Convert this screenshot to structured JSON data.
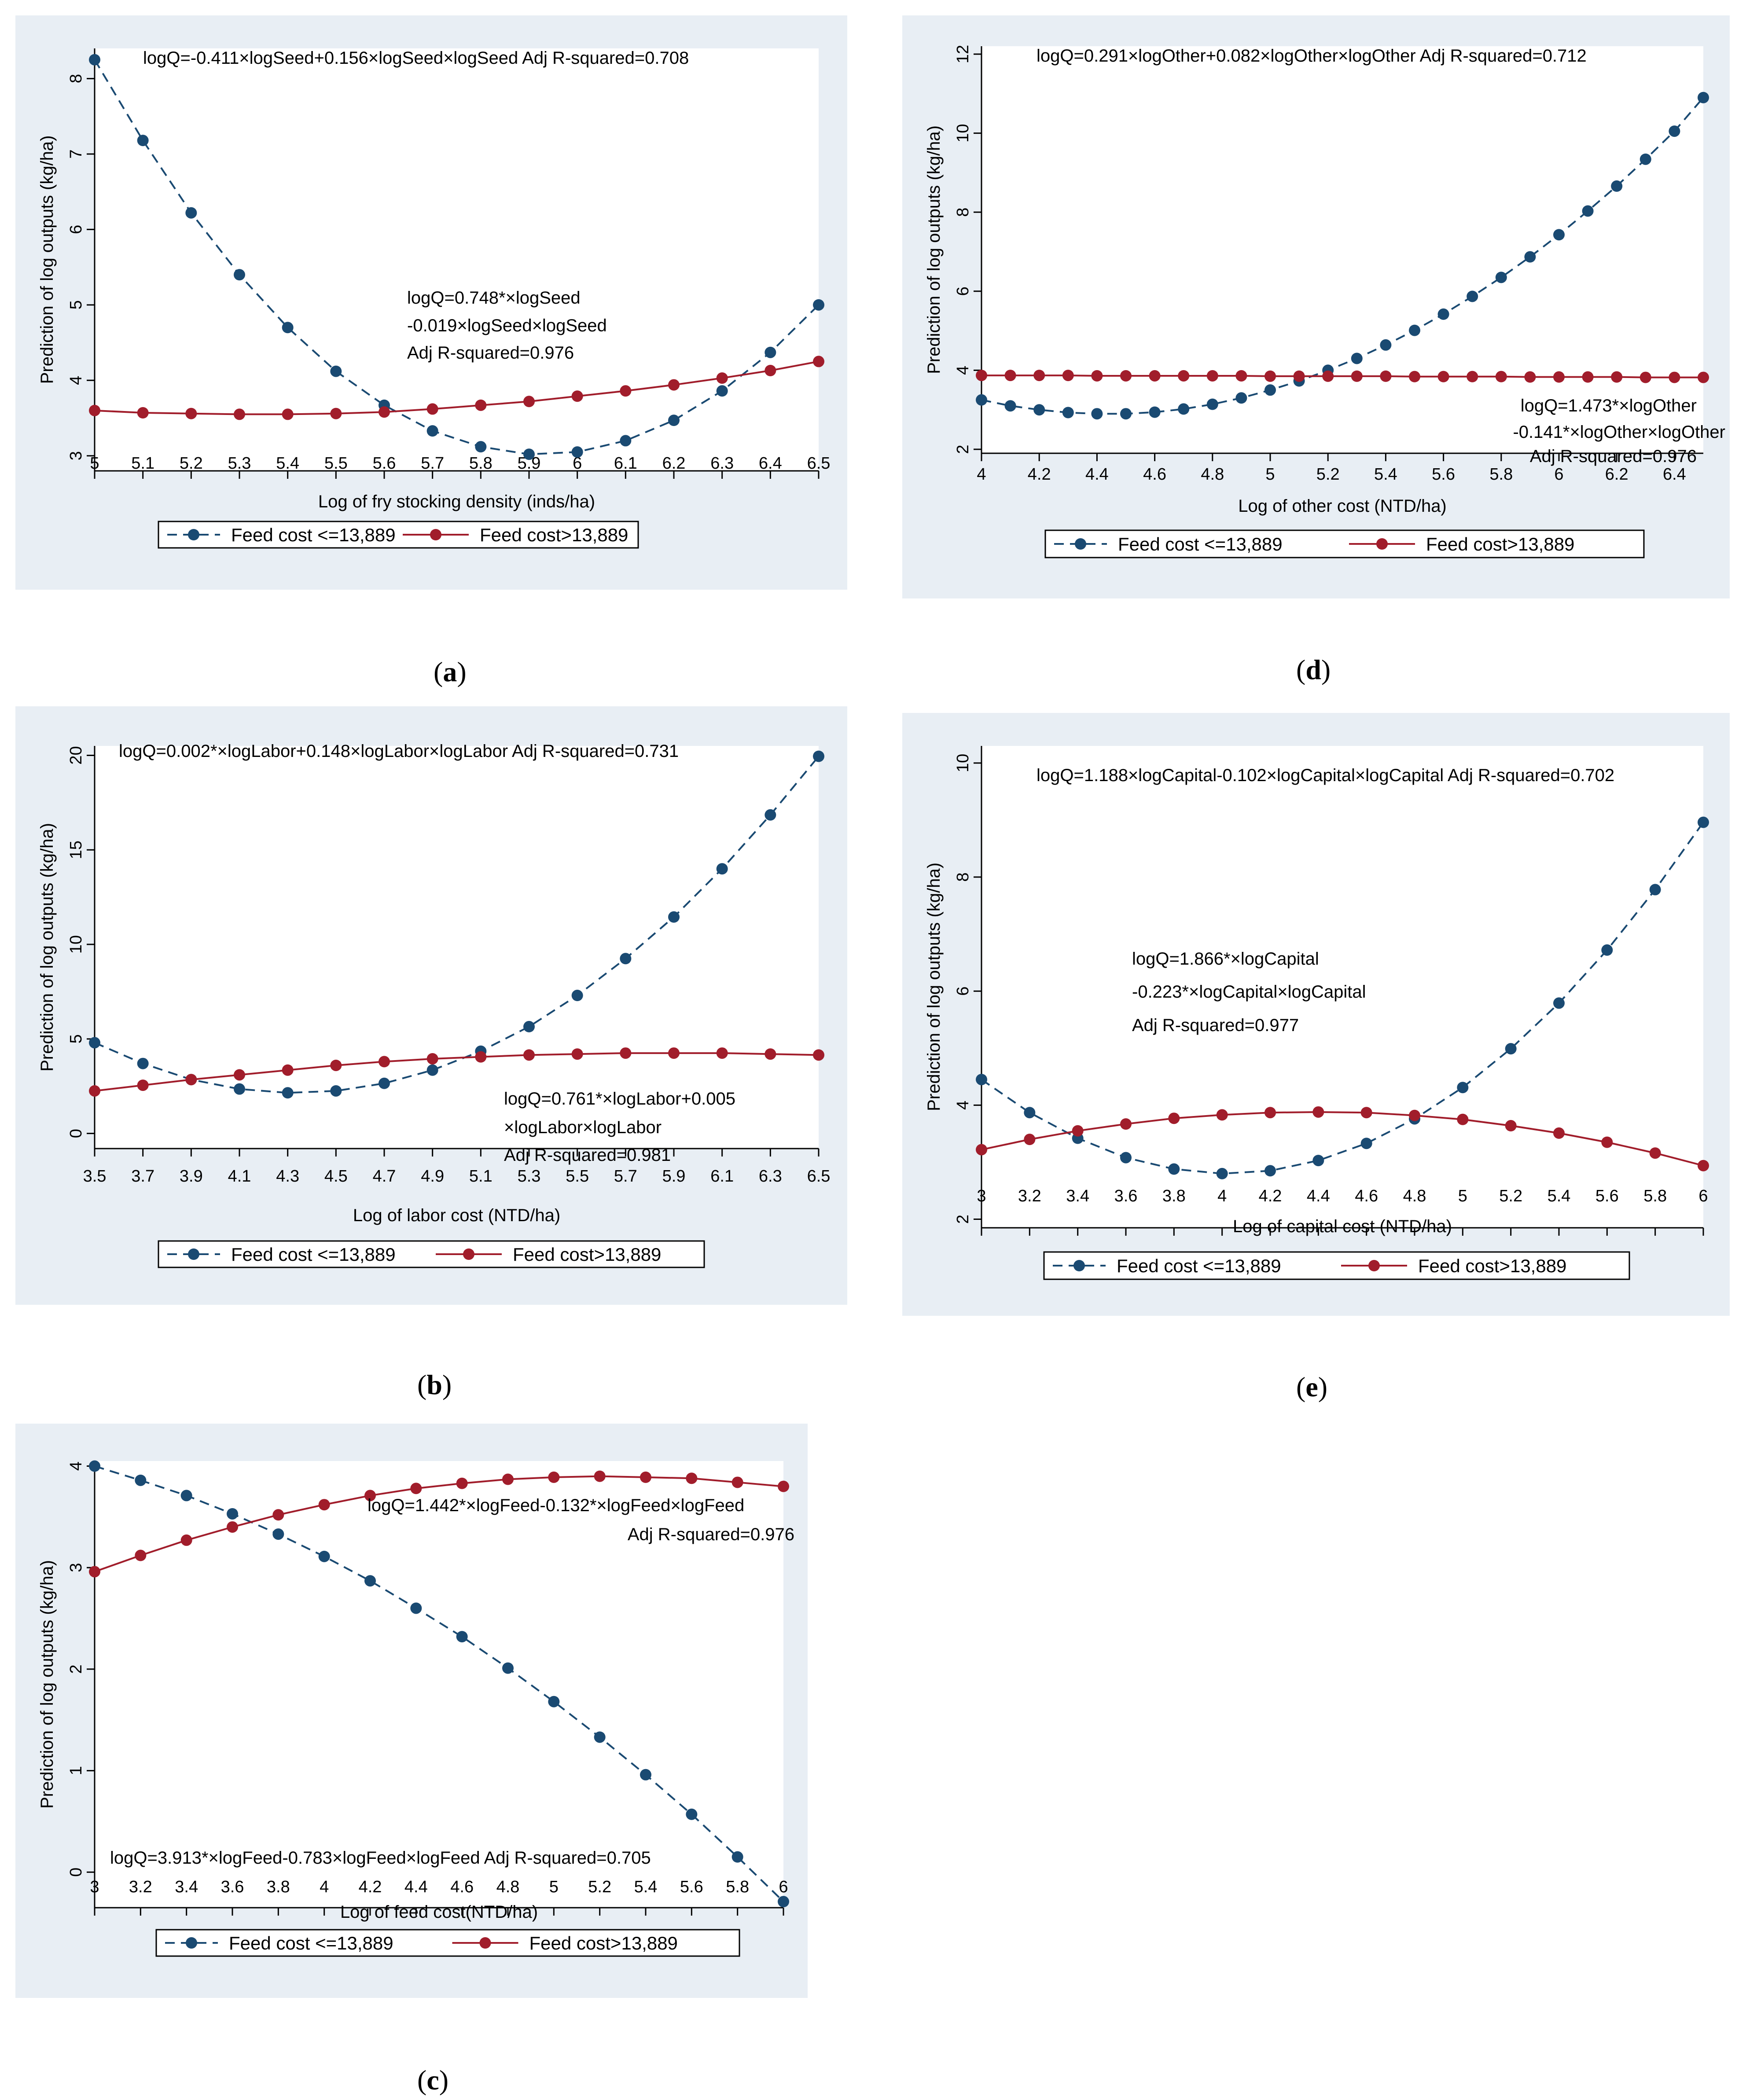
{
  "colors": {
    "series_low": "#1a4a72",
    "series_high": "#a11d2b",
    "panel_bg": "#e8eef4"
  },
  "legend": {
    "low_label": "Feed cost <=13,889",
    "high_label": "Feed cost>13,889"
  },
  "captions": {
    "a": "a",
    "b": "b",
    "c": "c",
    "d": "d",
    "e": "e"
  },
  "chart_data": [
    {
      "id": "a",
      "type": "line",
      "ylabel": "Prediction of log outputs (kg/ha)",
      "xlabel": "Log of fry stocking density (inds/ha)",
      "xlim": [
        5,
        6.5
      ],
      "ylim": [
        2.8,
        8.4
      ],
      "xticks": [
        "5",
        "5.1",
        "5.2",
        "5.3",
        "5.4",
        "5.5",
        "5.6",
        "5.7",
        "5.8",
        "5.9",
        "6",
        "6.1",
        "6.2",
        "6.3",
        "6.4",
        "6.5"
      ],
      "yticks": [
        "3",
        "4",
        "5",
        "6",
        "7",
        "8"
      ],
      "x": [
        5,
        5.1,
        5.2,
        5.3,
        5.4,
        5.5,
        5.6,
        5.7,
        5.8,
        5.9,
        6,
        6.1,
        6.2,
        6.3,
        6.4,
        6.5
      ],
      "series": [
        {
          "name": "Feed cost <=13,889",
          "values": [
            8.25,
            7.18,
            6.22,
            5.4,
            4.7,
            4.12,
            3.67,
            3.33,
            3.12,
            3.02,
            3.05,
            3.2,
            3.47,
            3.86,
            4.37,
            5.0
          ]
        },
        {
          "name": "Feed cost>13,889",
          "values": [
            3.6,
            3.57,
            3.56,
            3.55,
            3.55,
            3.56,
            3.58,
            3.62,
            3.67,
            3.72,
            3.79,
            3.86,
            3.94,
            4.03,
            4.13,
            4.25
          ]
        }
      ],
      "annotations": [
        "logQ=-0.411×logSeed+0.156×logSeed×logSeed  Adj R-squared=0.708",
        "logQ=0.748*×logSeed",
        "-0.019×logSeed×logSeed",
        "Adj R-squared=0.976"
      ]
    },
    {
      "id": "b",
      "type": "line",
      "ylabel": "Prediction of log outputs (kg/ha)",
      "xlabel": "Log of labor cost (NTD/ha)",
      "xlim": [
        3.5,
        6.5
      ],
      "ylim": [
        -0.8,
        20.5
      ],
      "xticks": [
        "3.5",
        "3.7",
        "3.9",
        "4.1",
        "4.3",
        "4.5",
        "4.7",
        "4.9",
        "5.1",
        "5.3",
        "5.5",
        "5.7",
        "5.9",
        "6.1",
        "6.3",
        "6.5"
      ],
      "yticks": [
        "0",
        "5",
        "10",
        "15",
        "20"
      ],
      "x": [
        3.5,
        3.7,
        3.9,
        4.1,
        4.3,
        4.5,
        4.7,
        4.9,
        5.1,
        5.3,
        5.5,
        5.7,
        5.9,
        6.1,
        6.3,
        6.5
      ],
      "series": [
        {
          "name": "Feed cost <=13,889",
          "values": [
            4.8,
            3.7,
            2.85,
            2.35,
            2.15,
            2.25,
            2.65,
            3.35,
            4.35,
            5.65,
            7.3,
            9.25,
            11.45,
            14.0,
            16.85,
            19.95
          ]
        },
        {
          "name": "Feed cost>13,889",
          "values": [
            2.25,
            2.55,
            2.85,
            3.1,
            3.35,
            3.6,
            3.8,
            3.95,
            4.05,
            4.15,
            4.2,
            4.25,
            4.25,
            4.25,
            4.2,
            4.15
          ]
        }
      ],
      "annotations": [
        "logQ=0.002*×logLabor+0.148×logLabor×logLabor  Adj R-squared=0.731",
        "logQ=0.761*×logLabor+0.005",
        "×logLabor×logLabor",
        "Adj R-squared=0.981"
      ]
    },
    {
      "id": "c",
      "type": "line",
      "ylabel": "Prediction of log outputs (kg/ha)",
      "xlabel": "Log of feed cost(NTD/ha)",
      "xlim": [
        3,
        6
      ],
      "ylim": [
        -0.35,
        4.05
      ],
      "xticks": [
        "3",
        "3.2",
        "3.4",
        "3.6",
        "3.8",
        "4",
        "4.2",
        "4.4",
        "4.6",
        "4.8",
        "5",
        "5.2",
        "5.4",
        "5.6",
        "5.8",
        "6"
      ],
      "yticks": [
        "0",
        "1",
        "2",
        "3",
        "4"
      ],
      "x": [
        3,
        3.2,
        3.4,
        3.6,
        3.8,
        4,
        4.2,
        4.4,
        4.6,
        4.8,
        5,
        5.2,
        5.4,
        5.6,
        5.8,
        6
      ],
      "series": [
        {
          "name": "Feed cost <=13,889",
          "values": [
            4.0,
            3.86,
            3.71,
            3.53,
            3.33,
            3.11,
            2.87,
            2.6,
            2.32,
            2.01,
            1.68,
            1.33,
            0.96,
            0.57,
            0.15,
            -0.29
          ]
        },
        {
          "name": "Feed cost>13,889",
          "values": [
            2.96,
            3.12,
            3.27,
            3.4,
            3.52,
            3.62,
            3.71,
            3.78,
            3.83,
            3.87,
            3.89,
            3.9,
            3.89,
            3.88,
            3.84,
            3.8
          ]
        }
      ],
      "annotations": [
        "logQ=1.442*×logFeed-0.132*×logFeed×logFeed",
        "Adj R-squared=0.976",
        "logQ=3.913*×logFeed-0.783×logFeed×logFeed  Adj R-squared=0.705"
      ]
    },
    {
      "id": "d",
      "type": "line",
      "ylabel": "Prediction of log outputs (kg/ha)",
      "xlabel": "Log of other cost (NTD/ha)",
      "xlim": [
        4,
        6.5
      ],
      "ylim": [
        1.9,
        12.2
      ],
      "xticks": [
        "4",
        "4.2",
        "4.4",
        "4.6",
        "4.8",
        "5",
        "5.2",
        "5.4",
        "5.6",
        "5.8",
        "6",
        "6.2",
        "6.4"
      ],
      "yticks": [
        "2",
        "4",
        "6",
        "8",
        "10",
        "12"
      ],
      "x": [
        4,
        4.1,
        4.2,
        4.3,
        4.4,
        4.5,
        4.6,
        4.7,
        4.8,
        4.9,
        5,
        5.1,
        5.2,
        5.3,
        5.4,
        5.5,
        5.6,
        5.7,
        5.8,
        5.9,
        6,
        6.1,
        6.2,
        6.3,
        6.4,
        6.5
      ],
      "series": [
        {
          "name": "Feed cost <=13,889",
          "values": [
            3.25,
            3.1,
            3.0,
            2.93,
            2.9,
            2.9,
            2.94,
            3.02,
            3.14,
            3.3,
            3.5,
            3.73,
            4.0,
            4.3,
            4.64,
            5.01,
            5.42,
            5.87,
            6.35,
            6.87,
            7.43,
            8.03,
            8.66,
            9.34,
            10.05,
            10.9
          ]
        },
        {
          "name": "Feed cost>13,889",
          "values": [
            3.87,
            3.87,
            3.87,
            3.87,
            3.86,
            3.86,
            3.86,
            3.86,
            3.86,
            3.86,
            3.85,
            3.85,
            3.85,
            3.85,
            3.85,
            3.84,
            3.84,
            3.84,
            3.84,
            3.83,
            3.83,
            3.83,
            3.83,
            3.82,
            3.82,
            3.82
          ]
        }
      ],
      "annotations": [
        "logQ=0.291×logOther+0.082×logOther×logOther  Adj R-squared=0.712",
        "logQ=1.473*×logOther",
        "-0.141*×logOther×logOther",
        "Adj R-squared=0.976"
      ]
    },
    {
      "id": "e",
      "type": "line",
      "ylabel": "Prediction of log outputs (kg/ha)",
      "xlabel": "Log of capital cost (NTD/ha)",
      "xlim": [
        3,
        6
      ],
      "ylim": [
        1.85,
        10.3
      ],
      "xticks": [
        "3",
        "3.2",
        "3.4",
        "3.6",
        "3.8",
        "4",
        "4.2",
        "4.4",
        "4.6",
        "4.8",
        "5",
        "5.2",
        "5.4",
        "5.6",
        "5.8",
        "6"
      ],
      "yticks": [
        "2",
        "4",
        "6",
        "8",
        "10"
      ],
      "x": [
        3,
        3.2,
        3.4,
        3.6,
        3.8,
        4,
        4.2,
        4.4,
        4.6,
        4.8,
        5,
        5.2,
        5.4,
        5.6,
        5.8,
        6
      ],
      "series": [
        {
          "name": "Feed cost <=13,889",
          "values": [
            4.45,
            3.87,
            3.42,
            3.08,
            2.88,
            2.8,
            2.85,
            3.03,
            3.33,
            3.76,
            4.31,
            4.99,
            5.79,
            6.72,
            7.78,
            8.96
          ]
        },
        {
          "name": "Feed cost>13,889",
          "values": [
            3.22,
            3.4,
            3.55,
            3.67,
            3.77,
            3.83,
            3.87,
            3.88,
            3.87,
            3.82,
            3.75,
            3.64,
            3.51,
            3.35,
            3.16,
            2.94
          ]
        }
      ],
      "annotations": [
        "logQ=1.188×logCapital-0.102×logCapital×logCapital  Adj R-squared=0.702",
        "logQ=1.866*×logCapital",
        "-0.223*×logCapital×logCapital",
        "Adj R-squared=0.977"
      ]
    }
  ]
}
